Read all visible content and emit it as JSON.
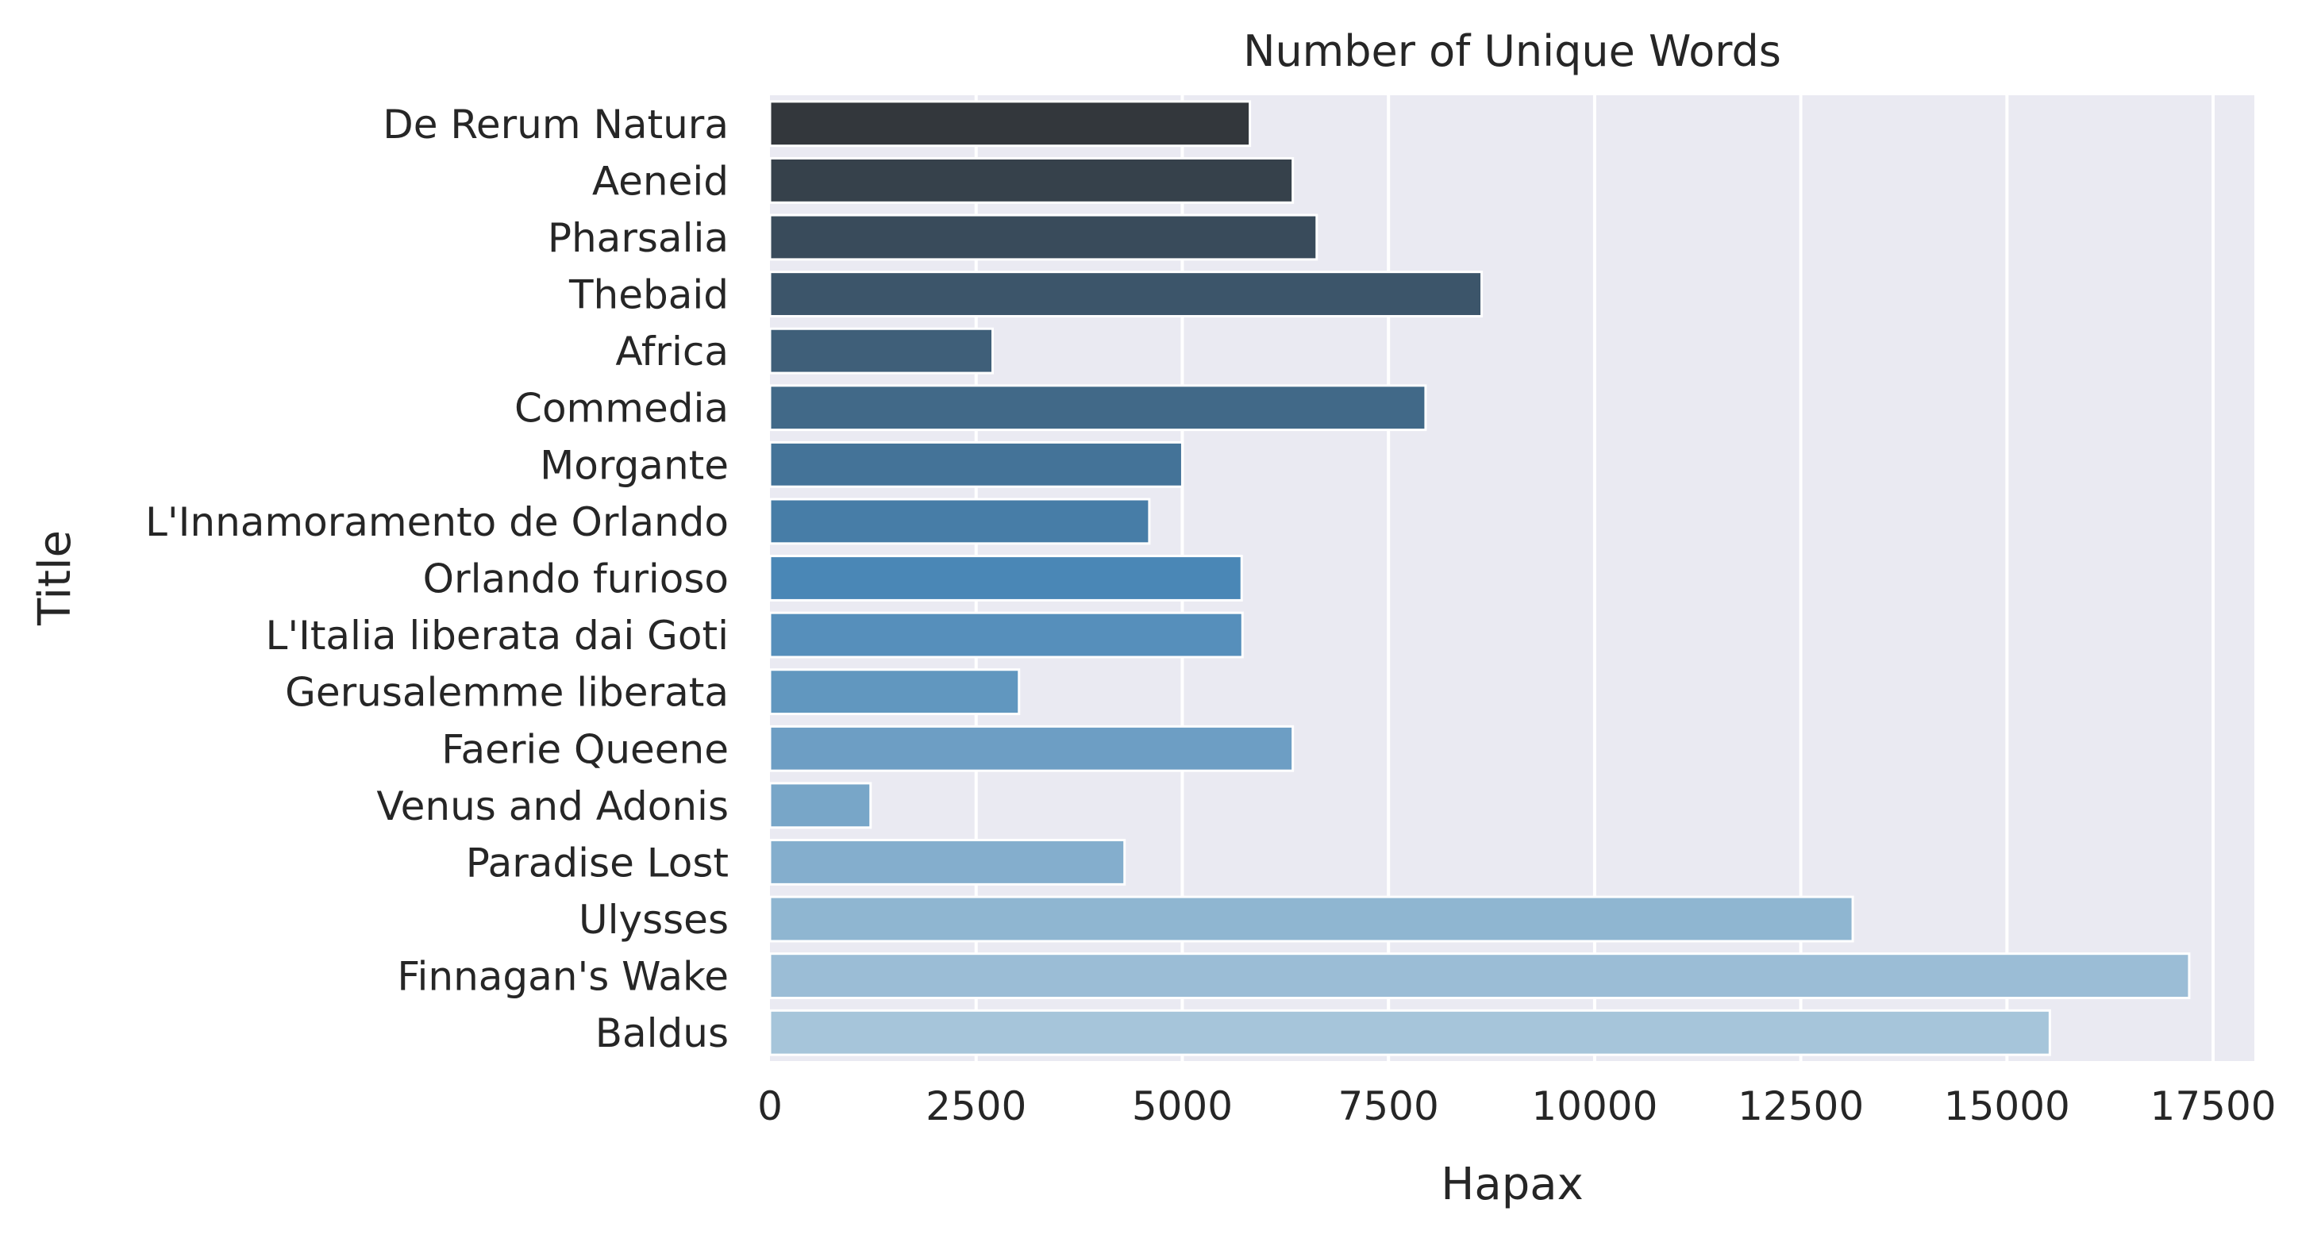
{
  "chart_data": {
    "type": "bar",
    "orientation": "horizontal",
    "title": "Number of Unique Words",
    "xlabel": "Hapax",
    "ylabel": "Title",
    "categories": [
      "De Rerum Natura",
      "Aeneid",
      "Pharsalia",
      "Thebaid",
      "Africa",
      "Commedia",
      "Morgante",
      "L'Innamoramento de Orlando",
      "Orlando furioso",
      "L'Italia liberata dai Goti",
      "Gerusalemme liberata",
      "Faerie Queene",
      "Venus and Adonis",
      "Paradise Lost",
      "Ulysses",
      "Finnagan's Wake",
      "Baldus"
    ],
    "values": [
      5820,
      6340,
      6630,
      8630,
      2700,
      7950,
      5000,
      4600,
      5720,
      5730,
      3020,
      6340,
      1220,
      4300,
      13130,
      17210,
      15520
    ],
    "xlim": [
      0,
      18000
    ],
    "xticks": [
      0,
      2500,
      5000,
      7500,
      10000,
      12500,
      15000,
      17500
    ],
    "grid": true,
    "legend": "none",
    "colors": {
      "background": "#eaeaf2",
      "grid": "#ffffff",
      "bar_start": "#33373c",
      "bar_mid": "#4a87b6",
      "bar_end": "#a6c5da"
    }
  }
}
